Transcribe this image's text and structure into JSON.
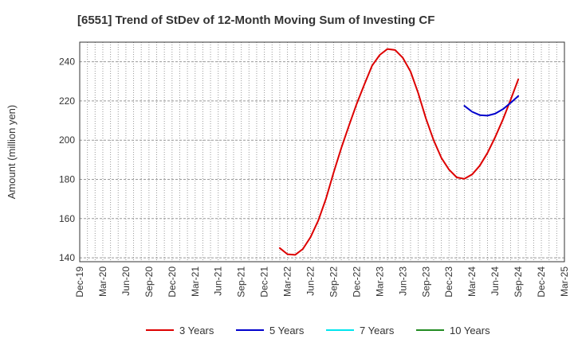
{
  "chart_data": {
    "type": "line",
    "title": "[6551]  Trend of StDev of 12-Month Moving Sum of Investing CF",
    "ylabel": "Amount (million yen)",
    "xlabel": "",
    "ylim": [
      138,
      250
    ],
    "y_ticks": [
      140,
      160,
      180,
      200,
      220,
      240
    ],
    "x_tick_labels": [
      "Dec-19",
      "Mar-20",
      "Jun-20",
      "Sep-20",
      "Dec-20",
      "Mar-21",
      "Jun-21",
      "Sep-21",
      "Dec-21",
      "Mar-22",
      "Jun-22",
      "Sep-22",
      "Dec-22",
      "Mar-23",
      "Jun-23",
      "Sep-23",
      "Dec-23",
      "Mar-24",
      "Jun-24",
      "Sep-24",
      "Dec-24",
      "Mar-25"
    ],
    "grid": true,
    "legend_position": "bottom",
    "series": [
      {
        "name": "3 Years",
        "color": "#dd0000",
        "x": [
          "Feb-22",
          "Mar-22",
          "Apr-22",
          "May-22",
          "Jun-22",
          "Jul-22",
          "Aug-22",
          "Sep-22",
          "Oct-22",
          "Nov-22",
          "Dec-22",
          "Jan-23",
          "Feb-23",
          "Mar-23",
          "Apr-23",
          "May-23",
          "Jun-23",
          "Jul-23",
          "Aug-23",
          "Sep-23",
          "Oct-23",
          "Nov-23",
          "Dec-23",
          "Jan-24",
          "Feb-24",
          "Mar-24",
          "Apr-24",
          "May-24",
          "Jun-24",
          "Jul-24",
          "Aug-24",
          "Sep-24"
        ],
        "values": [
          145,
          141.8,
          141.5,
          144.5,
          150.5,
          159,
          170,
          183.5,
          196,
          207.5,
          218.5,
          228.5,
          238,
          243.5,
          246.5,
          246,
          242,
          235,
          224,
          211,
          200,
          191,
          185,
          181,
          180.3,
          182.5,
          187,
          193.5,
          201.5,
          210.5,
          220.5,
          231
        ]
      },
      {
        "name": "5 Years",
        "color": "#0000cc",
        "x": [
          "Feb-24",
          "Mar-24",
          "Apr-24",
          "May-24",
          "Jun-24",
          "Jul-24",
          "Aug-24",
          "Sep-24"
        ],
        "values": [
          217.5,
          214.5,
          212.8,
          212.5,
          213.5,
          215.8,
          219,
          222.5
        ]
      },
      {
        "name": "7 Years",
        "color": "#00e5ee",
        "x": [],
        "values": []
      },
      {
        "name": "10 Years",
        "color": "#228b22",
        "x": [],
        "values": []
      }
    ]
  }
}
